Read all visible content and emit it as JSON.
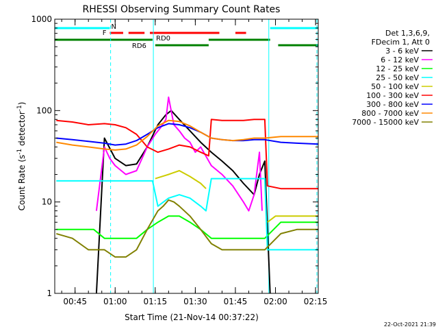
{
  "chart_data": {
    "type": "line",
    "title": "RHESSI Observing Summary Count Rates",
    "xlabel": "Start Time (21-Nov-14 00:37:22)",
    "ylabel_main": "Count Rate (s",
    "ylabel_sup1": "-1",
    "ylabel_mid": " detector",
    "ylabel_sup2": "-1",
    "ylabel_end": ")",
    "y_scale": "log",
    "ylim": [
      1,
      1000
    ],
    "xlim_minutes": [
      37.4,
      136
    ],
    "y_ticks": [
      {
        "value": 1,
        "label": "1"
      },
      {
        "value": 10,
        "label": "10"
      },
      {
        "value": 100,
        "label": "100"
      },
      {
        "value": 1000,
        "label": "1000"
      }
    ],
    "x_ticks": [
      {
        "minute": 45,
        "label": "00:45"
      },
      {
        "minute": 60,
        "label": "01:00"
      },
      {
        "minute": 75,
        "label": "01:15"
      },
      {
        "minute": 90,
        "label": "01:30"
      },
      {
        "minute": 105,
        "label": "01:45"
      },
      {
        "minute": 120,
        "label": "02:00"
      },
      {
        "minute": 135,
        "label": "02:15"
      }
    ],
    "legend_header": [
      "Det 1,3,6,9,",
      "FDecim 1, Att 0"
    ],
    "series": [
      {
        "name": "3 - 6 keV",
        "color": "#000000",
        "x": [
          53,
          56,
          60,
          64,
          68,
          72,
          76,
          79,
          81,
          84,
          88,
          92,
          96,
          100,
          104,
          108,
          112,
          114,
          116,
          118
        ],
        "y": [
          1,
          50,
          30,
          25,
          26,
          40,
          70,
          90,
          100,
          80,
          60,
          45,
          35,
          28,
          22,
          16,
          12,
          20,
          28,
          1
        ]
      },
      {
        "name": "6 - 12 keV",
        "color": "#ff00ff",
        "x": [
          53,
          56,
          58,
          60,
          64,
          68,
          72,
          75,
          77,
          79,
          80,
          82,
          84,
          86,
          88,
          90,
          92,
          96,
          100,
          104,
          108,
          110,
          112,
          114,
          115
        ],
        "y": [
          8,
          40,
          30,
          25,
          20,
          22,
          40,
          55,
          65,
          80,
          140,
          70,
          60,
          50,
          45,
          35,
          40,
          25,
          20,
          15,
          10,
          8,
          12,
          35,
          8
        ]
      },
      {
        "name": "12 - 25 keV",
        "color": "#00ff00",
        "x": [
          38,
          44,
          52,
          56,
          60,
          64,
          68,
          72,
          76,
          80,
          84,
          88,
          92,
          96,
          100,
          104,
          108,
          112,
          116,
          122,
          128,
          136
        ],
        "y": [
          5,
          5,
          5,
          4,
          4,
          4,
          4,
          5,
          6,
          7,
          7,
          6,
          5,
          4,
          4,
          4,
          4,
          4,
          4,
          6,
          6,
          6
        ]
      },
      {
        "name": "25 - 50 keV",
        "color": "#00ffff",
        "x": [
          38,
          44,
          50,
          56,
          60,
          64,
          68,
          72,
          74,
          76,
          80,
          84,
          88,
          92,
          94,
          96,
          100,
          104,
          108,
          112,
          116,
          117,
          122,
          128,
          136
        ],
        "y": [
          17,
          17,
          17,
          17,
          17,
          17,
          17,
          17,
          17,
          9,
          11,
          12,
          11,
          9,
          8,
          18,
          18,
          18,
          18,
          18,
          18,
          3,
          3,
          3,
          3
        ]
      },
      {
        "name": "50 - 100 keV",
        "color": "#cccc00",
        "x": [
          38,
          74,
          75,
          80,
          84,
          88,
          92,
          94,
          95,
          116,
          117,
          120,
          126,
          136
        ],
        "y": [
          null,
          null,
          18,
          20,
          22,
          19,
          16,
          14,
          null,
          null,
          6,
          7,
          7,
          7
        ]
      },
      {
        "name": "100 - 300 keV",
        "color": "#ff0000",
        "x": [
          38,
          44,
          50,
          56,
          60,
          64,
          68,
          72,
          76,
          80,
          84,
          88,
          92,
          95,
          96,
          100,
          104,
          108,
          112,
          116,
          117,
          122,
          128,
          136
        ],
        "y": [
          78,
          75,
          70,
          72,
          70,
          65,
          55,
          40,
          35,
          38,
          42,
          40,
          35,
          32,
          80,
          78,
          78,
          78,
          80,
          80,
          15,
          14,
          14,
          14
        ]
      },
      {
        "name": "300 - 800 keV",
        "color": "#0000ff",
        "x": [
          38,
          44,
          50,
          56,
          60,
          64,
          68,
          72,
          76,
          80,
          84,
          88,
          92,
          96,
          100,
          104,
          108,
          112,
          116,
          122,
          128,
          136
        ],
        "y": [
          50,
          48,
          46,
          44,
          42,
          43,
          47,
          55,
          65,
          72,
          70,
          65,
          58,
          50,
          48,
          47,
          47,
          48,
          48,
          45,
          44,
          43
        ]
      },
      {
        "name": "800 - 7000 keV",
        "color": "#ff8800",
        "x": [
          38,
          44,
          50,
          56,
          60,
          64,
          68,
          72,
          76,
          80,
          84,
          88,
          92,
          96,
          100,
          104,
          108,
          112,
          116,
          122,
          128,
          136
        ],
        "y": [
          45,
          42,
          40,
          38,
          37,
          38,
          42,
          52,
          68,
          78,
          76,
          68,
          58,
          50,
          48,
          47,
          48,
          50,
          50,
          52,
          52,
          52
        ]
      },
      {
        "name": "7000 - 15000 keV",
        "color": "#808000",
        "x": [
          38,
          44,
          50,
          56,
          60,
          64,
          68,
          72,
          76,
          78,
          80,
          82,
          84,
          88,
          92,
          96,
          100,
          104,
          108,
          112,
          116,
          122,
          128,
          136
        ],
        "y": [
          4.5,
          4,
          3,
          3,
          2.5,
          2.5,
          3,
          5,
          8,
          9,
          10.5,
          10,
          9,
          7,
          5,
          3.5,
          3,
          3,
          3,
          3,
          3,
          4.5,
          5,
          5
        ]
      }
    ],
    "flag_bars": [
      {
        "label": "N",
        "color": "#00ffff",
        "segments": [
          [
            37.4,
            58
          ],
          [
            118,
            136
          ]
        ],
        "row": 1
      },
      {
        "label": "F",
        "color": "#ff0000",
        "segments": [
          [
            58,
            63
          ],
          [
            65,
            71
          ],
          [
            73,
            99
          ],
          [
            105,
            109
          ]
        ],
        "row": 2
      },
      {
        "label": "RD0",
        "color": "#008000",
        "segments": [
          [
            37.4,
            74
          ],
          [
            95,
            118
          ]
        ],
        "row": 3
      },
      {
        "label": "RD6",
        "color": "#008000",
        "segments": [
          [
            75,
            95
          ],
          [
            121,
            136
          ]
        ],
        "row": 4
      }
    ],
    "vertical_markers": [
      {
        "minute": 58.3,
        "color": "#00ffff",
        "style": "dashed"
      },
      {
        "minute": 74.3,
        "color": "#00ffff",
        "style": "solid"
      },
      {
        "minute": 117.5,
        "color": "#00ffff",
        "style": "solid"
      },
      {
        "minute": 135.5,
        "color": "#00ffff",
        "style": "dashed"
      }
    ],
    "footer_timestamp": "22-Oct-2021 21:39",
    "grid": false,
    "legend_position": "right"
  }
}
